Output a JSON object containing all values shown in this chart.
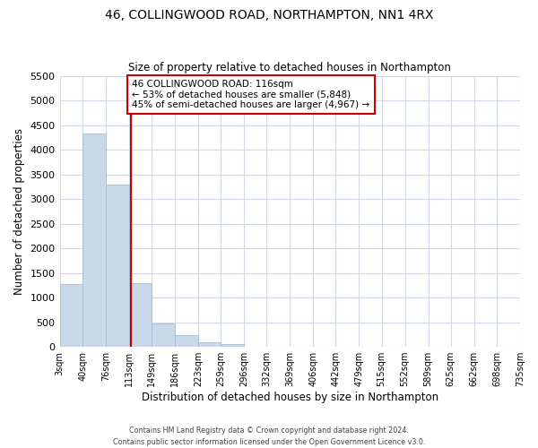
{
  "title": "46, COLLINGWOOD ROAD, NORTHAMPTON, NN1 4RX",
  "subtitle": "Size of property relative to detached houses in Northampton",
  "xlabel": "Distribution of detached houses by size in Northampton",
  "ylabel": "Number of detached properties",
  "footer_lines": [
    "Contains HM Land Registry data © Crown copyright and database right 2024.",
    "Contains public sector information licensed under the Open Government Licence v3.0."
  ],
  "bar_edges": [
    3,
    40,
    76,
    113,
    149,
    186,
    223,
    259,
    296,
    332,
    369,
    406,
    442,
    479,
    515,
    552,
    589,
    625,
    662,
    698,
    735
  ],
  "bar_heights": [
    1270,
    4330,
    3300,
    1290,
    480,
    240,
    85,
    50,
    0,
    0,
    0,
    0,
    0,
    0,
    0,
    0,
    0,
    0,
    0,
    0
  ],
  "bar_color": "#c8d8e8",
  "bar_edgecolor": "#a0b8cc",
  "property_line_x": 116,
  "property_line_color": "#cc0000",
  "annotation_text": "46 COLLINGWOOD ROAD: 116sqm\n← 53% of detached houses are smaller (5,848)\n45% of semi-detached houses are larger (4,967) →",
  "annotation_box_edgecolor": "#cc0000",
  "annotation_box_facecolor": "#ffffff",
  "ylim": [
    0,
    5500
  ],
  "yticks": [
    0,
    500,
    1000,
    1500,
    2000,
    2500,
    3000,
    3500,
    4000,
    4500,
    5000,
    5500
  ],
  "xtick_labels": [
    "3sqm",
    "40sqm",
    "76sqm",
    "113sqm",
    "149sqm",
    "186sqm",
    "223sqm",
    "259sqm",
    "296sqm",
    "332sqm",
    "369sqm",
    "406sqm",
    "442sqm",
    "479sqm",
    "515sqm",
    "552sqm",
    "589sqm",
    "625sqm",
    "662sqm",
    "698sqm",
    "735sqm"
  ],
  "grid_color": "#d0d8e8",
  "background_color": "#ffffff",
  "figsize": [
    6.0,
    5.0
  ],
  "dpi": 100
}
